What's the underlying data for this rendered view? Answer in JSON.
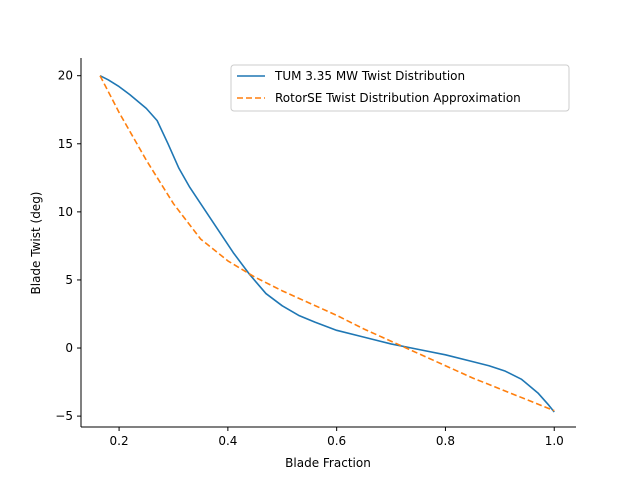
{
  "chart_data": {
    "type": "line",
    "xlabel": "Blade Fraction",
    "ylabel": "Blade Twist (deg)",
    "xlim": [
      0.13,
      1.04
    ],
    "ylim": [
      -5.8,
      21.3
    ],
    "xticks": [
      0.2,
      0.4,
      0.6,
      0.8,
      1.0
    ],
    "xtick_labels": [
      "0.2",
      "0.4",
      "0.6",
      "0.8",
      "1.0"
    ],
    "yticks": [
      -5,
      0,
      5,
      10,
      15,
      20
    ],
    "ytick_labels": [
      "−5",
      "0",
      "5",
      "10",
      "15",
      "20"
    ],
    "grid": false,
    "legend_position": "top-right",
    "series": [
      {
        "name": "TUM 3.35 MW Twist Distribution",
        "color": "#1f77b4",
        "style": "solid",
        "x": [
          0.165,
          0.18,
          0.2,
          0.22,
          0.25,
          0.27,
          0.29,
          0.31,
          0.33,
          0.35,
          0.38,
          0.41,
          0.44,
          0.47,
          0.5,
          0.53,
          0.56,
          0.6,
          0.65,
          0.7,
          0.75,
          0.8,
          0.85,
          0.88,
          0.91,
          0.94,
          0.97,
          0.99,
          1.0
        ],
        "y": [
          20.0,
          19.7,
          19.2,
          18.6,
          17.6,
          16.7,
          15.0,
          13.2,
          11.8,
          10.6,
          8.8,
          7.0,
          5.4,
          4.0,
          3.1,
          2.4,
          1.9,
          1.3,
          0.8,
          0.3,
          -0.1,
          -0.5,
          -1.0,
          -1.3,
          -1.7,
          -2.3,
          -3.3,
          -4.2,
          -4.7
        ]
      },
      {
        "name": "RotorSE Twist Distribution Approximation",
        "color": "#ff7f0e",
        "style": "dashed",
        "x": [
          0.165,
          0.2,
          0.25,
          0.3,
          0.35,
          0.4,
          0.45,
          0.5,
          0.55,
          0.6,
          0.65,
          0.7,
          0.75,
          0.8,
          0.85,
          0.9,
          0.95,
          1.0
        ],
        "y": [
          20.0,
          17.3,
          13.8,
          10.6,
          8.0,
          6.4,
          5.2,
          4.2,
          3.3,
          2.4,
          1.4,
          0.5,
          -0.4,
          -1.3,
          -2.2,
          -3.0,
          -3.8,
          -4.6
        ]
      }
    ]
  }
}
